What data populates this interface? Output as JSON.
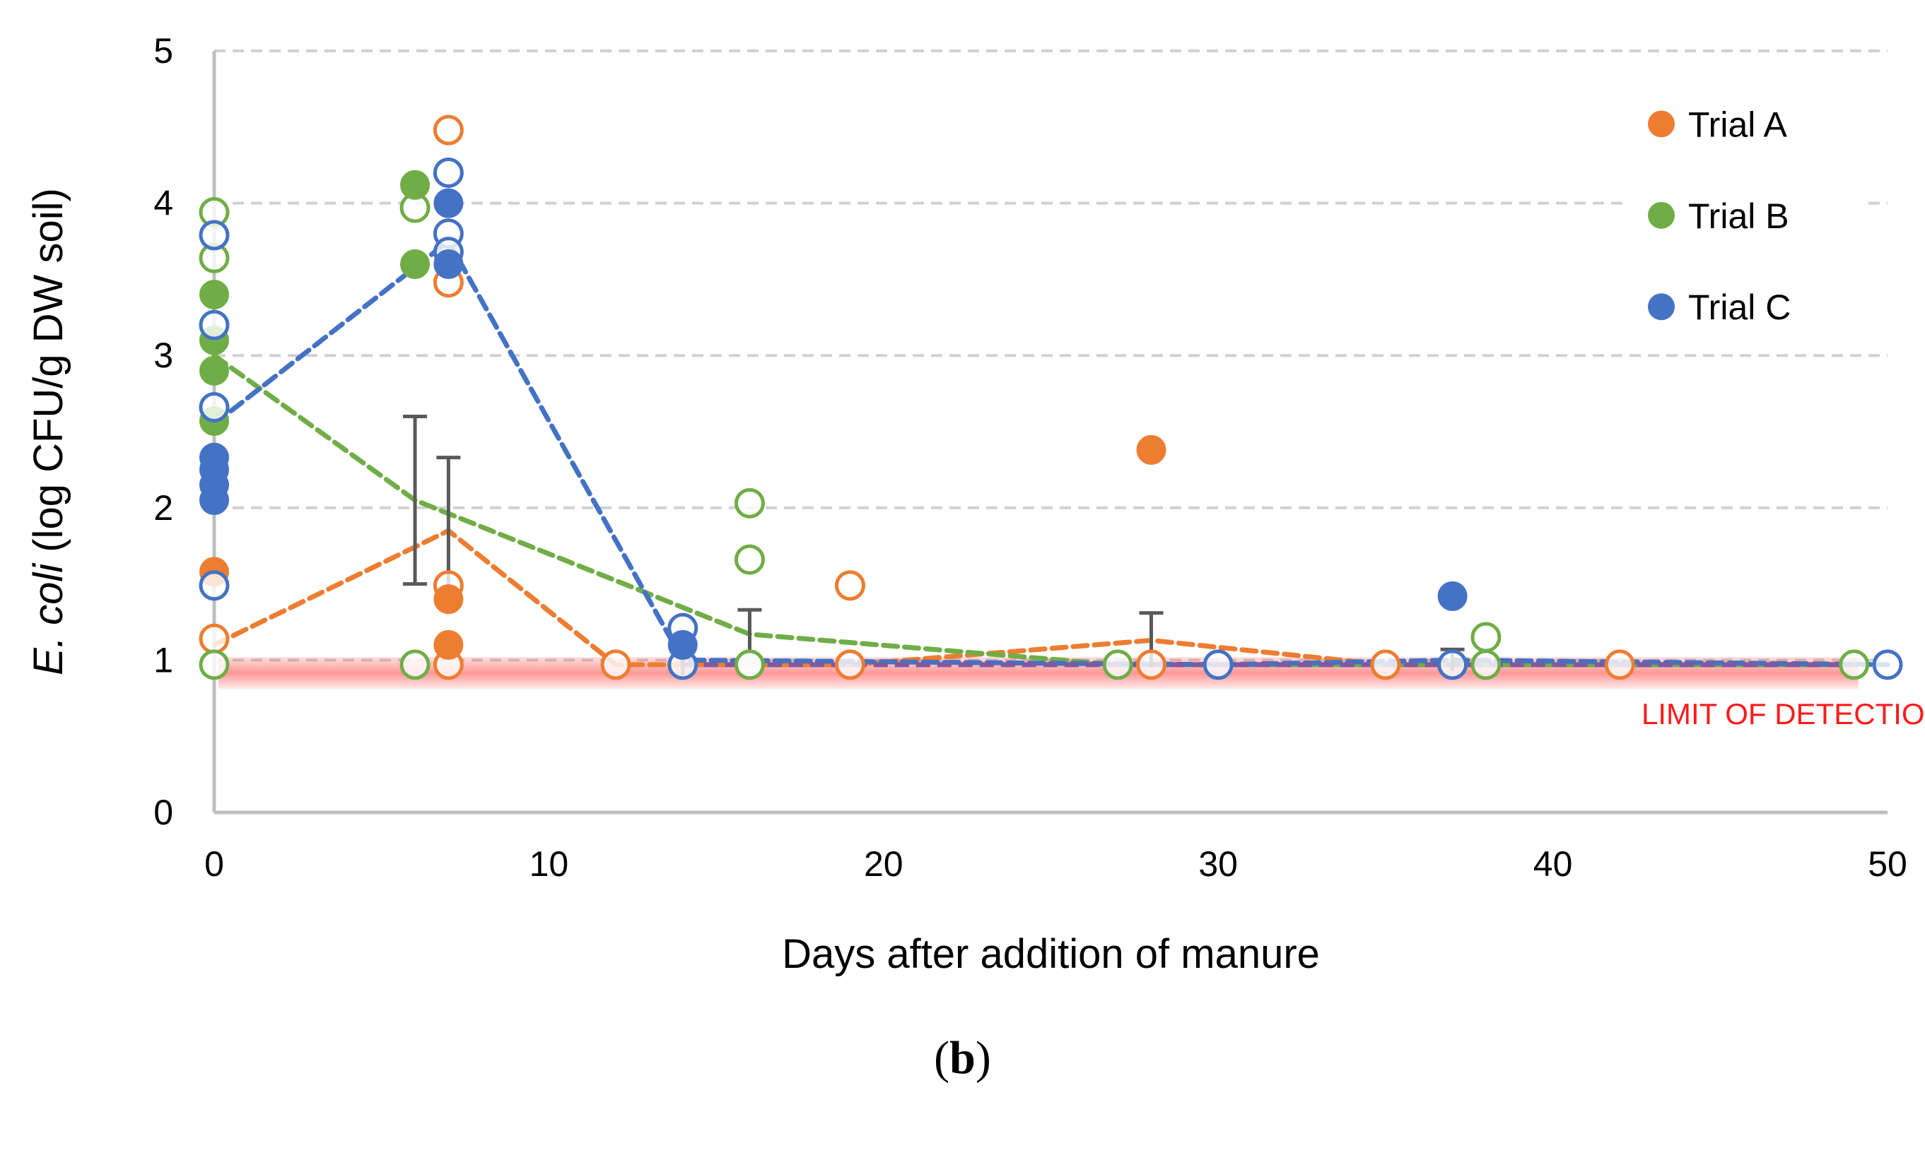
{
  "chart_data": {
    "type": "scatter",
    "xlabel": "Days after addition of manure",
    "ylabel_italic": "E. coli",
    "ylabel_rest": " (log CFU/g DW soil)",
    "xlim": [
      0,
      50
    ],
    "ylim": [
      0,
      5
    ],
    "x_ticks": [
      0,
      10,
      20,
      30,
      40,
      50
    ],
    "y_ticks": [
      0,
      1,
      2,
      3,
      4,
      5
    ],
    "grid": "horizontal dashed",
    "legend_position": "top-right",
    "limit_of_detection": {
      "value": 0.95,
      "label": "LIMIT OF DETECTION",
      "color": "#ff1a1a"
    },
    "series": [
      {
        "name": "Trial A",
        "color": "#ed7d31",
        "filled_points": [
          [
            0,
            1.58
          ],
          [
            7,
            1.4
          ],
          [
            7,
            1.1
          ],
          [
            28,
            2.38
          ]
        ],
        "open_points": [
          [
            0,
            1.14
          ],
          [
            7,
            4.48
          ],
          [
            7,
            3.48
          ],
          [
            7,
            1.49
          ],
          [
            7,
            0.97
          ],
          [
            12,
            0.97
          ],
          [
            16,
            0.97
          ],
          [
            19,
            1.49
          ],
          [
            19,
            0.97
          ],
          [
            28,
            0.97
          ],
          [
            35,
            0.97
          ],
          [
            42,
            0.97
          ]
        ],
        "trend": [
          [
            0,
            1.1
          ],
          [
            7,
            1.85
          ],
          [
            12,
            0.97
          ],
          [
            16,
            0.97
          ],
          [
            19,
            0.97
          ],
          [
            28,
            1.13
          ],
          [
            35,
            0.97
          ],
          [
            42,
            0.97
          ],
          [
            49,
            0.97
          ]
        ],
        "error_bars": [
          [
            7,
            1.85,
            0.48
          ],
          [
            28,
            1.13,
            0.18
          ]
        ]
      },
      {
        "name": "Trial B",
        "color": "#70ad47",
        "filled_points": [
          [
            0,
            3.4
          ],
          [
            0,
            3.1
          ],
          [
            0,
            2.9
          ],
          [
            0,
            2.57
          ],
          [
            6,
            4.12
          ],
          [
            6,
            3.6
          ]
        ],
        "open_points": [
          [
            0,
            3.94
          ],
          [
            0,
            3.64
          ],
          [
            0,
            0.97
          ],
          [
            6,
            3.97
          ],
          [
            6,
            0.97
          ],
          [
            16,
            2.03
          ],
          [
            16,
            1.66
          ],
          [
            16,
            0.97
          ],
          [
            27,
            0.97
          ],
          [
            38,
            1.15
          ],
          [
            38,
            0.97
          ],
          [
            49,
            0.97
          ]
        ],
        "trend": [
          [
            0,
            3.0
          ],
          [
            6,
            2.05
          ],
          [
            16,
            1.17
          ],
          [
            27,
            0.97
          ],
          [
            38,
            0.97
          ],
          [
            49,
            0.97
          ]
        ],
        "error_bars": [
          [
            6,
            2.05,
            0.55
          ],
          [
            16,
            1.17,
            0.16
          ]
        ]
      },
      {
        "name": "Trial C",
        "color": "#4472c4",
        "filled_points": [
          [
            0,
            2.33
          ],
          [
            0,
            2.25
          ],
          [
            0,
            2.15
          ],
          [
            0,
            2.05
          ],
          [
            7,
            4.0
          ],
          [
            7,
            3.6
          ],
          [
            14,
            1.1
          ],
          [
            37,
            1.42
          ]
        ],
        "open_points": [
          [
            0,
            3.79
          ],
          [
            0,
            3.2
          ],
          [
            0,
            2.66
          ],
          [
            0,
            1.49
          ],
          [
            7,
            4.2
          ],
          [
            7,
            3.8
          ],
          [
            7,
            3.68
          ],
          [
            14,
            1.21
          ],
          [
            14,
            0.97
          ],
          [
            30,
            0.97
          ],
          [
            37,
            0.97
          ],
          [
            50,
            0.97
          ]
        ],
        "trend": [
          [
            0,
            2.55
          ],
          [
            7,
            3.75
          ],
          [
            14,
            1.0
          ],
          [
            30,
            0.97
          ],
          [
            37,
            1.0
          ],
          [
            50,
            0.97
          ]
        ],
        "error_bars": [
          [
            14,
            1.0,
            0.1
          ],
          [
            37,
            1.0,
            0.07
          ]
        ]
      }
    ],
    "combined_trend": {
      "color": "#7d5aa0",
      "points": [
        [
          14,
          0.97
        ],
        [
          30,
          0.97
        ],
        [
          37,
          0.97
        ],
        [
          49,
          0.97
        ]
      ]
    }
  },
  "panel_label": "(b)",
  "panel_label_open": "(",
  "panel_label_letter": "b",
  "panel_label_close": ")"
}
